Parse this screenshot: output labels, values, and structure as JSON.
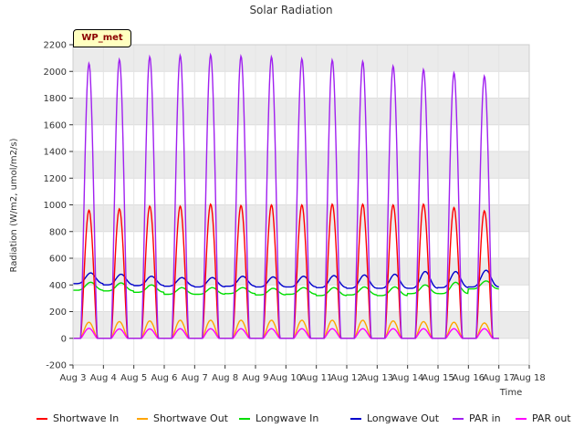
{
  "chart_data": {
    "type": "line",
    "title": "Solar Radiation",
    "xlabel": "Time",
    "ylabel": "Radiation (W/m2, umol/m2/s)",
    "site_label": "WP_met",
    "ylim": [
      -200,
      2200
    ],
    "yticks": [
      -200,
      0,
      200,
      400,
      600,
      800,
      1000,
      1200,
      1400,
      1600,
      1800,
      2000,
      2200
    ],
    "xticks": [
      "Aug 3",
      "Aug 4",
      "Aug 5",
      "Aug 6",
      "Aug 7",
      "Aug 8",
      "Aug 9",
      "Aug 10",
      "Aug 11",
      "Aug 12",
      "Aug 13",
      "Aug 14",
      "Aug 15",
      "Aug 16",
      "Aug 17",
      "Aug 18"
    ],
    "grid": true,
    "legend_position": "bottom",
    "days": [
      "Aug 3",
      "Aug 4",
      "Aug 5",
      "Aug 6",
      "Aug 7",
      "Aug 8",
      "Aug 9",
      "Aug 10",
      "Aug 11",
      "Aug 12",
      "Aug 13",
      "Aug 14",
      "Aug 15",
      "Aug 16"
    ],
    "series": [
      {
        "name": "Shortwave In",
        "color": "#ff0000",
        "kind": "peak",
        "daily_peak": [
          960,
          970,
          990,
          990,
          1005,
          995,
          1000,
          1000,
          1005,
          1005,
          1000,
          1005,
          980,
          955
        ],
        "night": 0
      },
      {
        "name": "Shortwave Out",
        "color": "#ffa500",
        "kind": "peak",
        "daily_peak": [
          120,
          125,
          130,
          135,
          135,
          135,
          135,
          135,
          135,
          135,
          130,
          125,
          120,
          115
        ],
        "night": 0
      },
      {
        "name": "Longwave In",
        "color": "#00dd00",
        "kind": "band",
        "daily_min": [
          360,
          355,
          345,
          330,
          330,
          335,
          325,
          330,
          320,
          325,
          320,
          335,
          335,
          370
        ],
        "daily_max": [
          420,
          415,
          400,
          380,
          380,
          380,
          375,
          380,
          380,
          385,
          385,
          400,
          420,
          430
        ]
      },
      {
        "name": "Longwave Out",
        "color": "#0000cc",
        "kind": "band",
        "daily_min": [
          410,
          400,
          395,
          390,
          385,
          390,
          385,
          385,
          380,
          375,
          375,
          375,
          380,
          385
        ],
        "daily_max": [
          490,
          480,
          465,
          455,
          455,
          465,
          460,
          465,
          470,
          475,
          480,
          500,
          500,
          510
        ]
      },
      {
        "name": "PAR in",
        "color": "#a020f0",
        "kind": "peak",
        "daily_peak": [
          2060,
          2090,
          2110,
          2120,
          2125,
          2115,
          2110,
          2095,
          2085,
          2075,
          2040,
          2015,
          1990,
          1965
        ],
        "night": 0
      },
      {
        "name": "PAR out",
        "color": "#ff00ff",
        "kind": "peak",
        "daily_peak": [
          75,
          70,
          70,
          72,
          72,
          72,
          72,
          72,
          72,
          72,
          72,
          72,
          72,
          72
        ],
        "night": 0
      }
    ]
  }
}
